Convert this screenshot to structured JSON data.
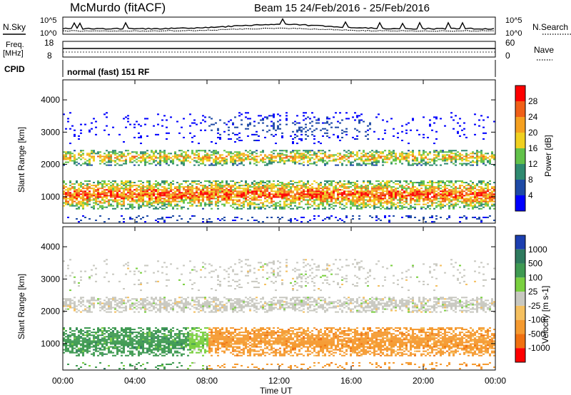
{
  "header": {
    "station": "McMurdo (fitACF)",
    "beam_info": "Beam 15  24/Feb/2016 - 25/Feb/2016"
  },
  "noise_panel": {
    "left_label": "N.Sky",
    "right_label": "N.Search",
    "left_ticks": [
      "10^5",
      "10^0"
    ],
    "right_ticks": [
      "10^5",
      "10^0"
    ]
  },
  "freq_panel": {
    "left_label_top": "Freq.",
    "left_label_unit": "[MHz]",
    "right_label": "Nave",
    "left_ticks": [
      "18",
      "8"
    ],
    "right_ticks": [
      "60",
      "0"
    ]
  },
  "cpid_panel": {
    "label": "CPID",
    "value": "normal (fast) 151 RF"
  },
  "chart_data": [
    {
      "type": "heatmap",
      "quantity": "Power",
      "ylabel": "Slant Range [km]",
      "ylim": [
        180,
        4620
      ],
      "yticks": [
        "1000",
        "2000",
        "3000",
        "4000"
      ],
      "colorbar_label": "Power [dB]",
      "colorbar_ticks": [
        "4",
        "8",
        "12",
        "16",
        "20",
        "24",
        "28"
      ],
      "colorbar_colors": [
        "#0000ff",
        "#1e4aa6",
        "#2f8a70",
        "#62c24a",
        "#f0d020",
        "#f5a020",
        "#f06018",
        "#ff0000"
      ],
      "bands": [
        {
          "range_km": [
            600,
            1500
          ],
          "level": "strong"
        },
        {
          "range_km": [
            1950,
            2450
          ],
          "level": "moderate"
        },
        {
          "range_km": [
            2600,
            3600
          ],
          "level": "sparse"
        }
      ]
    },
    {
      "type": "heatmap",
      "quantity": "Velocity",
      "xlabel": "Time UT",
      "ylabel": "Slant Range [km]",
      "ylim": [
        180,
        4620
      ],
      "yticks": [
        "1000",
        "2000",
        "3000",
        "4000"
      ],
      "xticks": [
        "00:00",
        "04:00",
        "08:00",
        "12:00",
        "16:00",
        "20:00",
        "00:00"
      ],
      "xlim_hours": [
        0,
        24
      ],
      "colorbar_label": "Velocity [m s-1]",
      "colorbar_ticks": [
        "1000",
        "500",
        "100",
        "25",
        "-25",
        "-100",
        "-500",
        "-1000"
      ],
      "colorbar_colors": [
        "#1c3fb0",
        "#2e7a5e",
        "#3f9a52",
        "#7ad040",
        "#c8c8c0",
        "#f5c060",
        "#f59a30",
        "#f07010",
        "#ff0000"
      ]
    }
  ]
}
